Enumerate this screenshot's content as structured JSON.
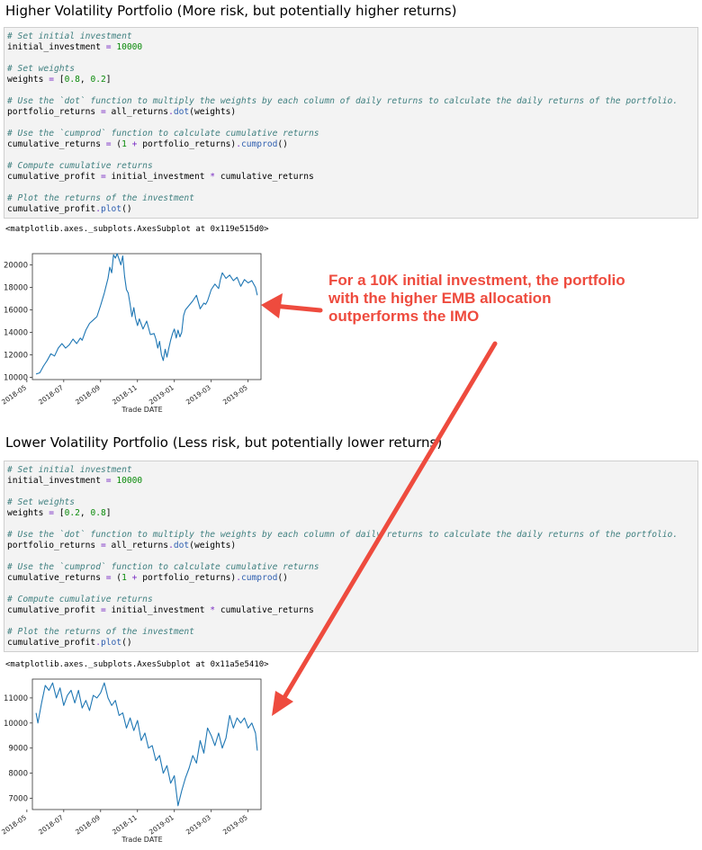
{
  "sections": [
    {
      "heading": "Higher Volatility Portfolio (More risk, but potentially higher returns)",
      "code": [
        [
          [
            "cm",
            "# Set initial investment"
          ]
        ],
        [
          [
            "nm",
            "initial_investment "
          ],
          [
            "op",
            "="
          ],
          [
            "nm",
            " "
          ],
          [
            "num",
            "10000"
          ]
        ],
        [],
        [
          [
            "cm",
            "# Set weights"
          ]
        ],
        [
          [
            "nm",
            "weights "
          ],
          [
            "op",
            "="
          ],
          [
            "nm",
            " ["
          ],
          [
            "num",
            "0.8"
          ],
          [
            "nm",
            ", "
          ],
          [
            "num",
            "0.2"
          ],
          [
            "nm",
            "]"
          ]
        ],
        [],
        [
          [
            "cm",
            "# Use the `dot` function to multiply the weights by each column of daily returns to calculate the daily returns of the portfolio."
          ]
        ],
        [
          [
            "nm",
            "portfolio_returns "
          ],
          [
            "op",
            "="
          ],
          [
            "nm",
            " all_returns"
          ],
          [
            "op",
            "."
          ],
          [
            "fn",
            "dot"
          ],
          [
            "nm",
            "(weights)"
          ]
        ],
        [],
        [
          [
            "cm",
            "# Use the `cumprod` function to calculate cumulative returns"
          ]
        ],
        [
          [
            "nm",
            "cumulative_returns "
          ],
          [
            "op",
            "="
          ],
          [
            "nm",
            " ("
          ],
          [
            "num",
            "1"
          ],
          [
            "nm",
            " "
          ],
          [
            "op",
            "+"
          ],
          [
            "nm",
            " portfolio_returns)"
          ],
          [
            "op",
            "."
          ],
          [
            "fn",
            "cumprod"
          ],
          [
            "nm",
            "()"
          ]
        ],
        [],
        [
          [
            "cm",
            "# Compute cumulative returns"
          ]
        ],
        [
          [
            "nm",
            "cumulative_profit "
          ],
          [
            "op",
            "="
          ],
          [
            "nm",
            " initial_investment "
          ],
          [
            "op",
            "*"
          ],
          [
            "nm",
            " cumulative_returns"
          ]
        ],
        [],
        [
          [
            "cm",
            "# Plot the returns of the investment"
          ]
        ],
        [
          [
            "nm",
            "cumulative_profit"
          ],
          [
            "op",
            "."
          ],
          [
            "fn",
            "plot"
          ],
          [
            "nm",
            "()"
          ]
        ]
      ],
      "output": "<matplotlib.axes._subplots.AxesSubplot at 0x119e515d0>"
    },
    {
      "heading": "Lower Volatility Portfolio (Less risk, but potentially lower returns)",
      "code": [
        [
          [
            "cm",
            "# Set initial investment"
          ]
        ],
        [
          [
            "nm",
            "initial_investment "
          ],
          [
            "op",
            "="
          ],
          [
            "nm",
            " "
          ],
          [
            "num",
            "10000"
          ]
        ],
        [],
        [
          [
            "cm",
            "# Set weights"
          ]
        ],
        [
          [
            "nm",
            "weights "
          ],
          [
            "op",
            "="
          ],
          [
            "nm",
            " ["
          ],
          [
            "num",
            "0.2"
          ],
          [
            "nm",
            ", "
          ],
          [
            "num",
            "0.8"
          ],
          [
            "nm",
            "]"
          ]
        ],
        [],
        [
          [
            "cm",
            "# Use the `dot` function to multiply the weights by each column of daily returns to calculate the daily returns of the portfolio."
          ]
        ],
        [
          [
            "nm",
            "portfolio_returns "
          ],
          [
            "op",
            "="
          ],
          [
            "nm",
            " all_returns"
          ],
          [
            "op",
            "."
          ],
          [
            "fn",
            "dot"
          ],
          [
            "nm",
            "(weights)"
          ]
        ],
        [],
        [
          [
            "cm",
            "# Use the `cumprod` function to calculate cumulative returns"
          ]
        ],
        [
          [
            "nm",
            "cumulative_returns "
          ],
          [
            "op",
            "="
          ],
          [
            "nm",
            " ("
          ],
          [
            "num",
            "1"
          ],
          [
            "nm",
            " "
          ],
          [
            "op",
            "+"
          ],
          [
            "nm",
            " portfolio_returns)"
          ],
          [
            "op",
            "."
          ],
          [
            "fn",
            "cumprod"
          ],
          [
            "nm",
            "()"
          ]
        ],
        [],
        [
          [
            "cm",
            "# Compute cumulative returns"
          ]
        ],
        [
          [
            "nm",
            "cumulative_profit "
          ],
          [
            "op",
            "="
          ],
          [
            "nm",
            " initial_investment "
          ],
          [
            "op",
            "*"
          ],
          [
            "nm",
            " cumulative_returns"
          ]
        ],
        [],
        [
          [
            "cm",
            "# Plot the returns of the investment"
          ]
        ],
        [
          [
            "nm",
            "cumulative_profit"
          ],
          [
            "op",
            "."
          ],
          [
            "fn",
            "plot"
          ],
          [
            "nm",
            "()"
          ]
        ]
      ],
      "output": "<matplotlib.axes._subplots.AxesSubplot at 0x11a5e5410>"
    }
  ],
  "annotation": {
    "lines": [
      "For a 10K initial investment, the portfolio",
      "with the higher EMB allocation",
      "outperforms the IMO"
    ],
    "color": "#ee4b3e"
  },
  "chart_data": [
    {
      "type": "line",
      "xlabel": "Trade DATE",
      "x_tick_labels": [
        "2018-05",
        "2018-07",
        "2018-09",
        "2018-11",
        "2019-01",
        "2019-03",
        "2019-05"
      ],
      "x_tick_months": [
        0,
        2,
        4,
        6,
        8,
        10,
        12
      ],
      "y_ticks": [
        10000,
        12000,
        14000,
        16000,
        18000,
        20000
      ],
      "ylim": [
        9800,
        21000
      ],
      "xlim": [
        0.3,
        12.7
      ],
      "line_color": "#1f77b4",
      "series": [
        {
          "x": [
            0.5,
            0.7,
            0.9,
            1.1,
            1.3,
            1.5,
            1.7,
            1.9,
            2.1,
            2.3,
            2.5,
            2.7,
            2.9,
            3.0,
            3.2,
            3.4,
            3.6,
            3.8,
            4.0,
            4.2,
            4.4,
            4.5,
            4.6,
            4.7,
            4.8,
            4.9,
            5.0,
            5.1,
            5.2,
            5.3,
            5.4,
            5.5,
            5.6,
            5.7,
            5.8,
            5.9,
            6.0,
            6.1,
            6.3,
            6.5,
            6.7,
            6.9,
            7.0,
            7.1,
            7.2,
            7.3,
            7.4,
            7.5,
            7.6,
            7.7,
            7.8,
            7.9,
            8.0,
            8.1,
            8.2,
            8.3,
            8.4,
            8.5,
            8.6,
            8.8,
            9.0,
            9.2,
            9.4,
            9.6,
            9.7,
            9.8,
            10.0,
            10.2,
            10.4,
            10.5,
            10.6,
            10.8,
            11.0,
            11.2,
            11.4,
            11.6,
            11.8,
            12.0,
            12.2,
            12.4,
            12.5
          ],
          "values": [
            10300,
            10400,
            11000,
            11500,
            12100,
            11900,
            12600,
            13000,
            12600,
            12900,
            13400,
            13000,
            13500,
            13300,
            14200,
            14800,
            15100,
            15400,
            16400,
            17500,
            18800,
            19800,
            19300,
            20900,
            20600,
            21000,
            20500,
            20000,
            20800,
            19000,
            17800,
            17500,
            16500,
            15400,
            16200,
            15200,
            14600,
            15200,
            14300,
            15000,
            13800,
            13900,
            13400,
            12600,
            13200,
            12000,
            11500,
            12500,
            11800,
            12600,
            13300,
            13900,
            14300,
            13500,
            14200,
            13600,
            14000,
            15500,
            16000,
            16400,
            16800,
            17300,
            16100,
            16600,
            16500,
            16800,
            17800,
            18300,
            17900,
            18700,
            19300,
            18800,
            19100,
            18600,
            18900,
            18100,
            18700,
            18400,
            18600,
            18000,
            17300
          ]
        }
      ]
    },
    {
      "type": "line",
      "xlabel": "Trade DATE",
      "x_tick_labels": [
        "2018-05",
        "2018-07",
        "2018-09",
        "2018-11",
        "2019-01",
        "2019-03",
        "2019-05"
      ],
      "x_tick_months": [
        0,
        2,
        4,
        6,
        8,
        10,
        12
      ],
      "y_ticks": [
        7000,
        8000,
        9000,
        10000,
        11000
      ],
      "ylim": [
        6550,
        11750
      ],
      "xlim": [
        0.3,
        12.7
      ],
      "line_color": "#1f77b4",
      "series": [
        {
          "x": [
            0.5,
            0.6,
            0.8,
            1.0,
            1.2,
            1.4,
            1.6,
            1.8,
            2.0,
            2.2,
            2.4,
            2.6,
            2.8,
            3.0,
            3.2,
            3.4,
            3.6,
            3.8,
            4.0,
            4.2,
            4.4,
            4.6,
            4.8,
            5.0,
            5.2,
            5.4,
            5.6,
            5.8,
            6.0,
            6.2,
            6.4,
            6.6,
            6.8,
            7.0,
            7.2,
            7.4,
            7.6,
            7.8,
            8.0,
            8.2,
            8.4,
            8.6,
            8.8,
            9.0,
            9.2,
            9.4,
            9.6,
            9.8,
            10.0,
            10.2,
            10.4,
            10.6,
            10.8,
            11.0,
            11.2,
            11.4,
            11.6,
            11.8,
            12.0,
            12.2,
            12.4,
            12.5
          ],
          "values": [
            10400,
            10000,
            10800,
            11500,
            11300,
            11600,
            11000,
            11400,
            10700,
            11100,
            11300,
            10800,
            11300,
            10600,
            10900,
            10500,
            11100,
            11000,
            11200,
            11600,
            11000,
            10700,
            10900,
            10300,
            10400,
            9800,
            10200,
            9700,
            10100,
            9300,
            9600,
            9000,
            9100,
            8500,
            8700,
            8000,
            8300,
            7600,
            7900,
            6700,
            7300,
            7800,
            8200,
            8700,
            8400,
            9300,
            8800,
            9800,
            9500,
            9100,
            9600,
            9000,
            9400,
            10300,
            9800,
            10200,
            10000,
            10200,
            9800,
            10000,
            9600,
            8900
          ]
        }
      ]
    }
  ]
}
